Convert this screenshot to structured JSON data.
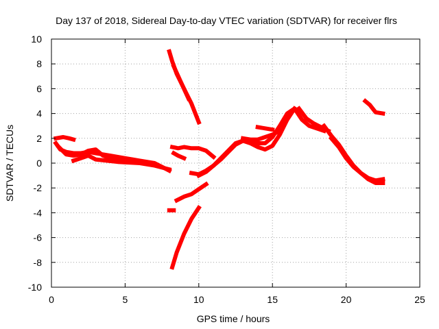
{
  "chart_data": {
    "type": "line",
    "title": "Day 137 of 2018, Sidereal Day-to-day VTEC variation (SDTVAR) for receiver flrs",
    "xlabel": "GPS time / hours",
    "ylabel": "SDTVAR / TECUs",
    "xlim": [
      0,
      25
    ],
    "ylim": [
      -10,
      10
    ],
    "xticks": [
      0,
      5,
      10,
      15,
      20,
      25
    ],
    "yticks": [
      -10,
      -8,
      -6,
      -4,
      -2,
      0,
      2,
      4,
      6,
      8,
      10
    ],
    "grid": true,
    "series_color": "#ff0000",
    "series": [
      {
        "name": "segment-1",
        "x": [
          0.3,
          0.6,
          1.0,
          1.5,
          2.0,
          2.5,
          3.0,
          3.5,
          4.0,
          4.5,
          5.0,
          5.5,
          6.0,
          6.5,
          7.0,
          7.5,
          8.0
        ],
        "y": [
          1.6,
          1.1,
          0.9,
          0.8,
          0.8,
          0.9,
          0.8,
          0.7,
          0.6,
          0.5,
          0.4,
          0.3,
          0.2,
          0.1,
          0.0,
          -0.3,
          -0.6
        ]
      },
      {
        "name": "segment-2",
        "x": [
          0.3,
          0.8,
          1.2,
          1.5
        ],
        "y": [
          2.0,
          2.1,
          2.0,
          1.9
        ]
      },
      {
        "name": "segment-3",
        "x": [
          0.5,
          1.0,
          1.5,
          2.0,
          2.5,
          3.0,
          3.5,
          4.0,
          5.0
        ],
        "y": [
          1.3,
          0.7,
          0.6,
          0.7,
          1.0,
          1.1,
          0.6,
          0.4,
          0.3
        ]
      },
      {
        "name": "segment-4",
        "x": [
          1.5,
          2.0,
          2.5,
          3.0,
          4.5,
          6.0,
          7.0,
          8.0
        ],
        "y": [
          0.2,
          0.4,
          0.6,
          0.3,
          0.1,
          0.0,
          -0.2,
          -0.5
        ]
      },
      {
        "name": "segment-5",
        "x": [
          8.0,
          8.2,
          8.5,
          9.0,
          9.5,
          10.0
        ],
        "y": [
          9.0,
          8.2,
          7.2,
          6.0,
          4.8,
          3.3
        ]
      },
      {
        "name": "segment-6",
        "x": [
          8.3,
          8.8,
          9.3
        ],
        "y": [
          7.8,
          6.5,
          5.2
        ]
      },
      {
        "name": "segment-7",
        "x": [
          8.0,
          8.3
        ],
        "y": [
          -3.8,
          -3.8
        ]
      },
      {
        "name": "segment-8",
        "x": [
          8.2,
          8.5,
          9.0,
          9.5,
          10.0
        ],
        "y": [
          -8.4,
          -7.2,
          -5.7,
          -4.5,
          -3.6
        ]
      },
      {
        "name": "segment-9",
        "x": [
          8.2,
          8.6,
          9.0,
          9.5,
          10.0,
          10.5,
          11.0
        ],
        "y": [
          1.3,
          1.2,
          1.3,
          1.2,
          1.2,
          1.0,
          0.5
        ]
      },
      {
        "name": "segment-10",
        "x": [
          8.3,
          8.6,
          9.0
        ],
        "y": [
          0.8,
          0.6,
          0.4
        ]
      },
      {
        "name": "segment-11",
        "x": [
          8.5,
          9.0,
          9.5,
          10.0,
          10.5
        ],
        "y": [
          -3.0,
          -2.7,
          -2.5,
          -2.1,
          -1.7
        ]
      },
      {
        "name": "segment-12",
        "x": [
          9.5,
          10.0,
          10.5,
          11.0,
          11.5,
          12.0,
          12.5,
          13.0,
          13.5,
          14.0,
          14.5,
          15.0,
          15.5,
          16.0,
          16.5,
          17.0,
          17.5,
          18.0,
          18.5
        ],
        "y": [
          -0.8,
          -0.9,
          -0.6,
          -0.2,
          0.3,
          0.9,
          1.5,
          1.8,
          1.7,
          1.6,
          1.6,
          2.1,
          3.0,
          4.0,
          4.4,
          3.5,
          3.0,
          2.8,
          2.6
        ]
      },
      {
        "name": "segment-13",
        "x": [
          10.0,
          10.5,
          11.0,
          11.5,
          12.0,
          12.5,
          13.0,
          13.5,
          14.0,
          14.5,
          15.0,
          15.5,
          16.0,
          16.5
        ],
        "y": [
          -1.0,
          -0.7,
          -0.2,
          0.4,
          1.0,
          1.6,
          1.8,
          1.6,
          1.3,
          1.1,
          1.4,
          2.3,
          3.5,
          4.4
        ]
      },
      {
        "name": "segment-14",
        "x": [
          13.0,
          13.5,
          14.0,
          14.5,
          15.0,
          15.5
        ],
        "y": [
          2.0,
          1.9,
          1.9,
          2.1,
          2.3,
          2.6
        ]
      },
      {
        "name": "segment-15",
        "x": [
          14.0,
          14.5,
          15.0
        ],
        "y": [
          2.9,
          2.8,
          2.7
        ]
      },
      {
        "name": "segment-16",
        "x": [
          16.8,
          17.3,
          17.8,
          18.3,
          18.8
        ],
        "y": [
          4.4,
          3.6,
          3.2,
          2.9,
          2.6
        ]
      },
      {
        "name": "segment-17",
        "x": [
          18.5,
          19.0,
          19.5,
          20.0,
          20.5,
          21.0,
          21.5,
          22.0,
          22.5
        ],
        "y": [
          3.0,
          2.2,
          1.5,
          0.6,
          -0.2,
          -0.8,
          -1.2,
          -1.4,
          -1.3
        ]
      },
      {
        "name": "segment-18",
        "x": [
          19.0,
          19.5,
          20.0,
          20.5,
          21.0,
          21.5,
          22.0,
          22.5
        ],
        "y": [
          2.0,
          1.3,
          0.4,
          -0.3,
          -0.8,
          -1.3,
          -1.6,
          -1.6
        ]
      },
      {
        "name": "segment-19",
        "x": [
          21.3,
          21.6,
          22.0,
          22.5
        ],
        "y": [
          5.0,
          4.7,
          4.1,
          4.0
        ]
      }
    ]
  }
}
